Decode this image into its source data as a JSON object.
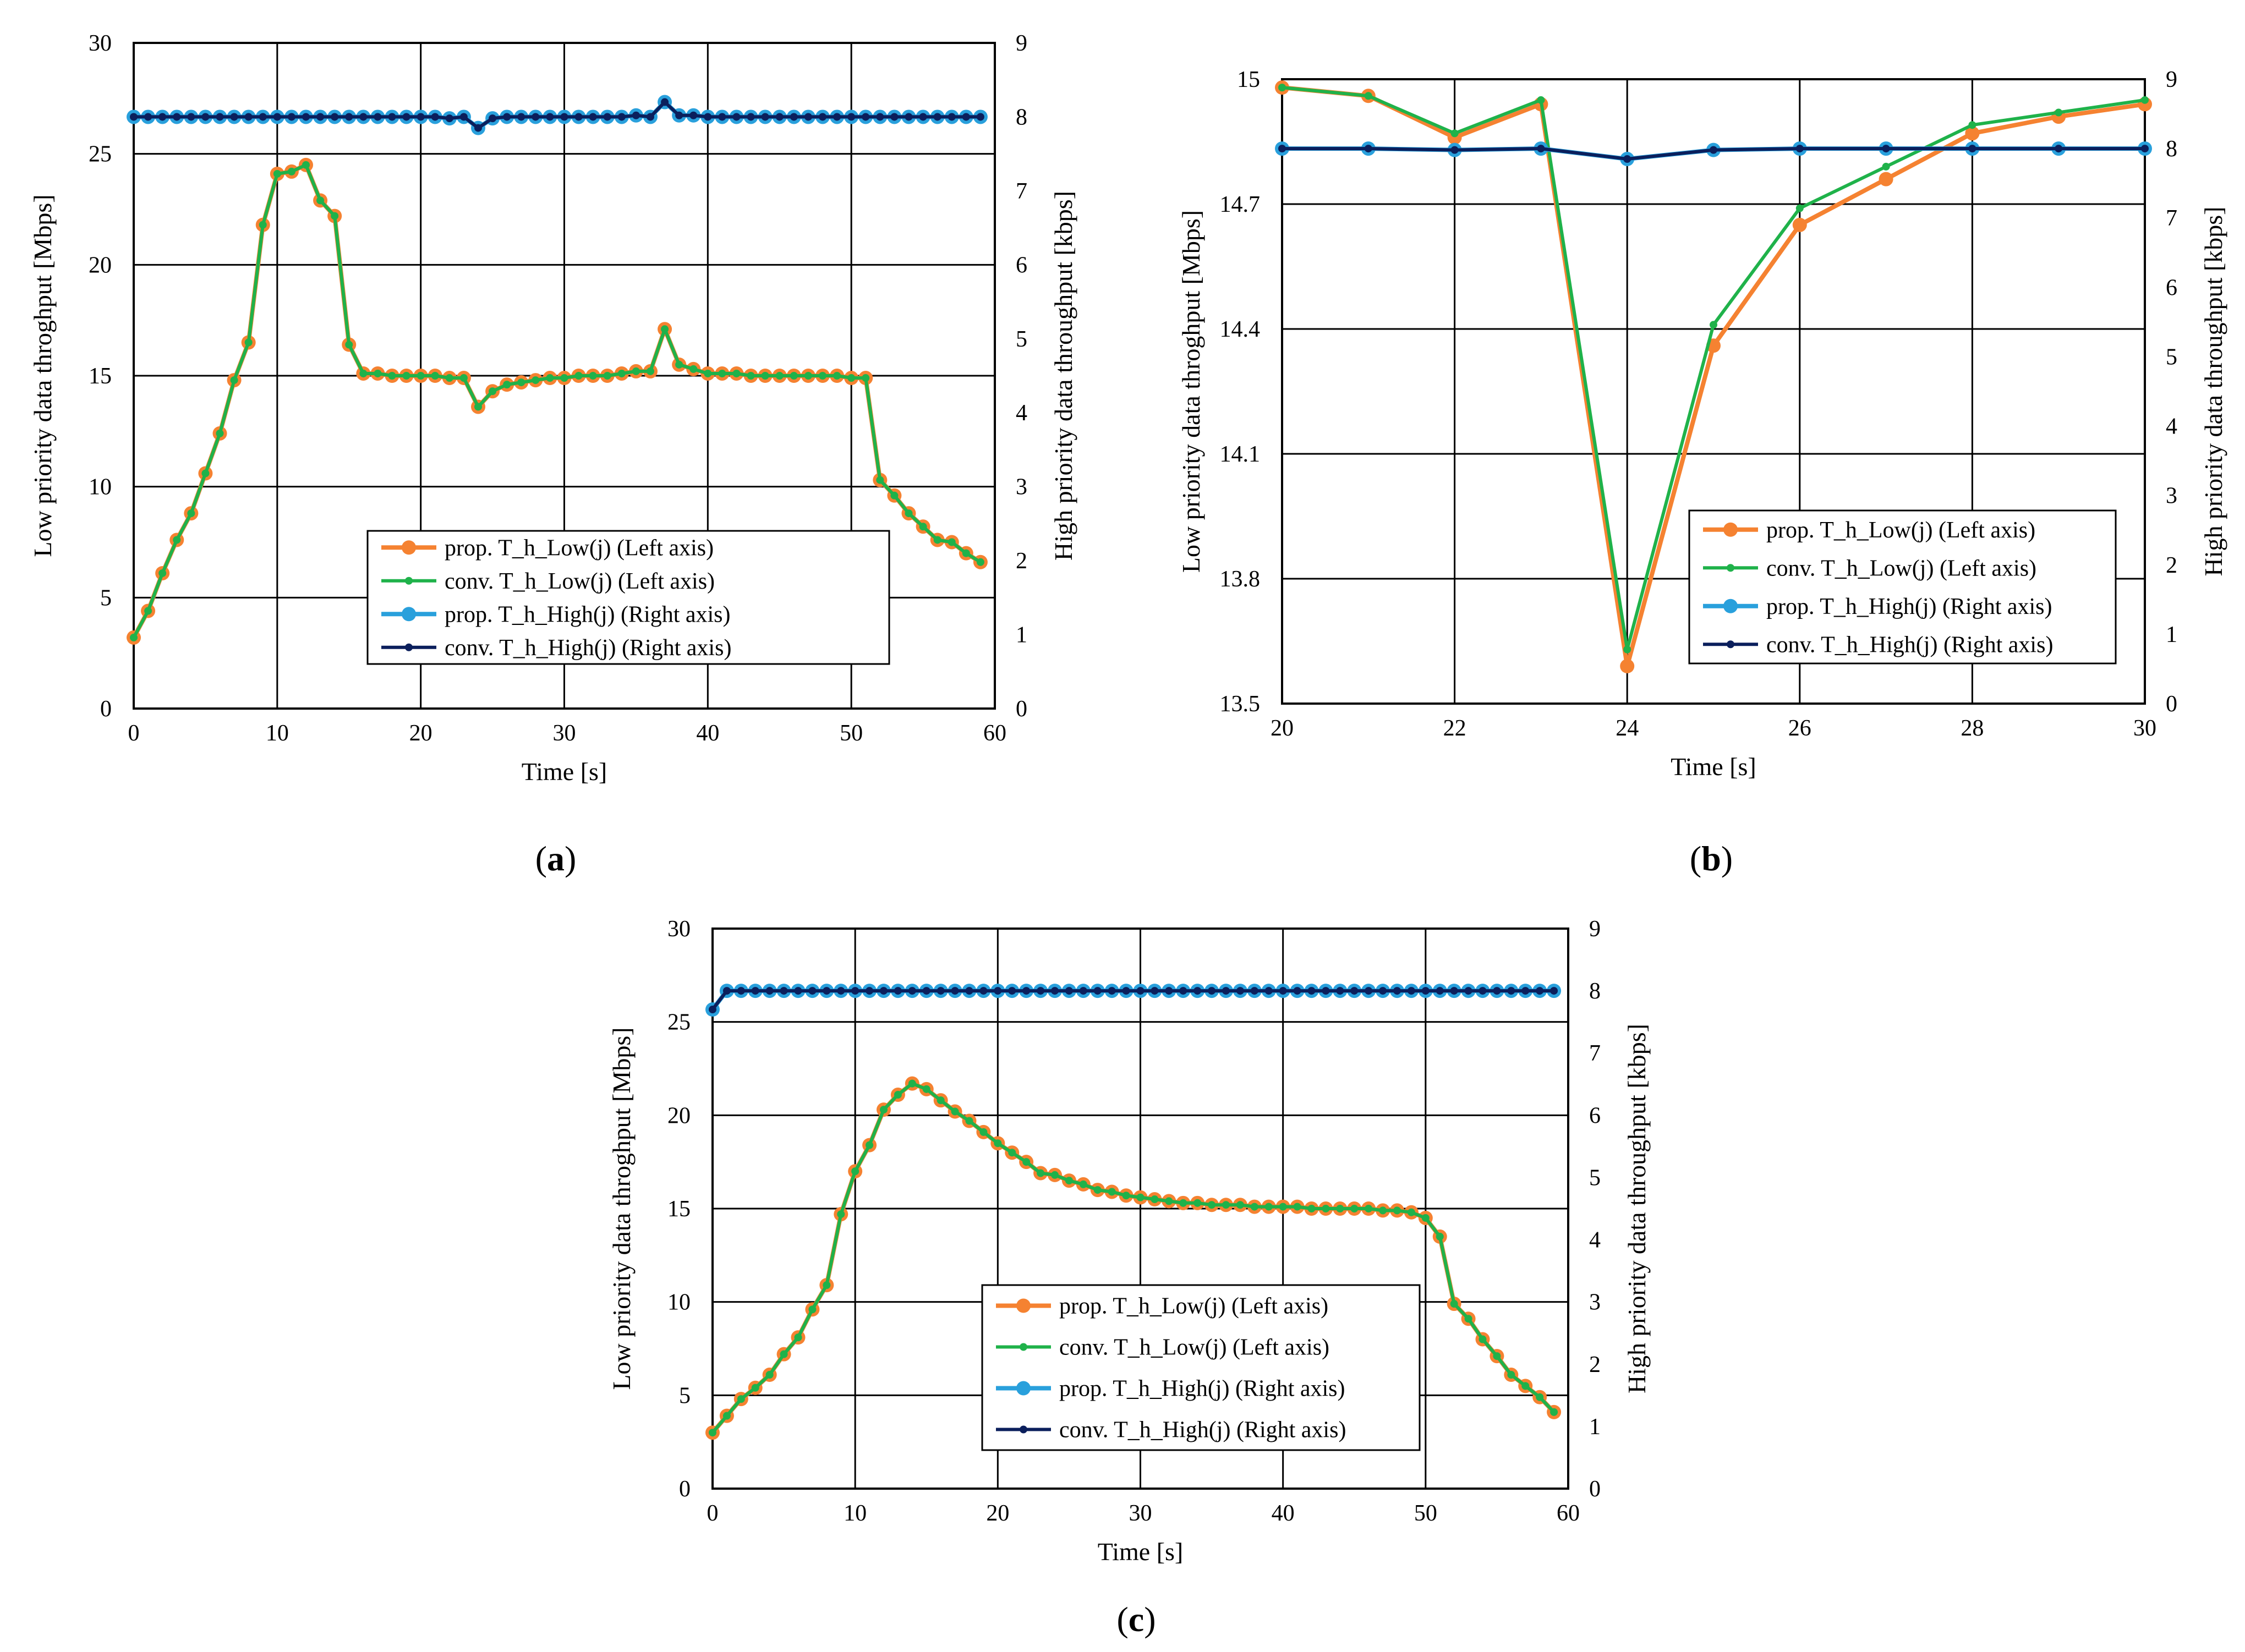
{
  "colors": {
    "prop_low": "#F58231",
    "conv_low": "#1FB24A",
    "prop_high": "#29A0DC",
    "conv_high": "#0B1F5C"
  },
  "chart_data": [
    {
      "id": "a",
      "type": "line",
      "panel_label": "(a)",
      "panel_letter": "a",
      "xlabel": "Time [s]",
      "ylabel": "Low priority data throghput [Mbps]",
      "y2label": "High priority data throughput [kbps]",
      "xlim": [
        0,
        60
      ],
      "ylim": [
        0,
        30
      ],
      "y2lim": [
        0,
        9
      ],
      "xticks": [
        0,
        10,
        20,
        30,
        40,
        50,
        60
      ],
      "yticks": [
        0,
        5,
        10,
        15,
        20,
        25,
        30
      ],
      "y2ticks": [
        0,
        1,
        2,
        3,
        4,
        5,
        6,
        7,
        8,
        9
      ],
      "legend": [
        "prop. T_h_Low(j) (Left axis)",
        "conv.  T_h_Low(j) (Left axis)",
        "prop. T_h_High(j) (Right axis)",
        "conv. T_h_High(j) (Right axis)"
      ],
      "x": [
        0,
        1,
        2,
        3,
        4,
        5,
        6,
        7,
        8,
        9,
        10,
        11,
        12,
        13,
        14,
        15,
        16,
        17,
        18,
        19,
        20,
        21,
        22,
        23,
        24,
        25,
        26,
        27,
        28,
        29,
        30,
        31,
        32,
        33,
        34,
        35,
        36,
        37,
        38,
        39,
        40,
        41,
        42,
        43,
        44,
        45,
        46,
        47,
        48,
        49,
        50,
        51,
        52,
        53,
        54,
        55,
        56,
        57,
        58,
        59
      ],
      "series": [
        {
          "name": "prop. T_h_Low(j) (Left axis)",
          "axis": "left",
          "values": [
            3.2,
            4.4,
            6.1,
            7.6,
            8.8,
            10.6,
            12.4,
            14.8,
            16.5,
            21.8,
            24.1,
            24.2,
            24.5,
            22.9,
            22.2,
            16.4,
            15.1,
            15.1,
            15.0,
            15.0,
            15.0,
            15.0,
            14.9,
            14.9,
            13.6,
            14.3,
            14.6,
            14.7,
            14.8,
            14.9,
            14.9,
            15.0,
            15.0,
            15.0,
            15.1,
            15.2,
            15.2,
            17.1,
            15.5,
            15.3,
            15.1,
            15.1,
            15.1,
            15.0,
            15.0,
            15.0,
            15.0,
            15.0,
            15.0,
            15.0,
            14.9,
            14.9,
            10.3,
            9.6,
            8.8,
            8.2,
            7.6,
            7.5,
            7.0,
            6.6
          ]
        },
        {
          "name": "conv.  T_h_Low(j) (Left axis)",
          "axis": "left",
          "values": [
            3.2,
            4.4,
            6.1,
            7.6,
            8.8,
            10.6,
            12.4,
            14.8,
            16.5,
            21.8,
            24.1,
            24.2,
            24.5,
            22.9,
            22.2,
            16.4,
            15.1,
            15.1,
            15.0,
            15.0,
            15.0,
            15.0,
            14.9,
            14.9,
            13.6,
            14.3,
            14.6,
            14.7,
            14.8,
            14.9,
            14.9,
            15.0,
            15.0,
            15.0,
            15.1,
            15.2,
            15.2,
            17.1,
            15.5,
            15.3,
            15.1,
            15.1,
            15.1,
            15.0,
            15.0,
            15.0,
            15.0,
            15.0,
            15.0,
            15.0,
            14.9,
            14.9,
            10.3,
            9.6,
            8.8,
            8.2,
            7.6,
            7.5,
            7.0,
            6.6
          ]
        },
        {
          "name": "prop. T_h_High(j) (Right axis)",
          "axis": "right",
          "values": [
            8.0,
            8.0,
            8.0,
            8.0,
            8.0,
            8.0,
            8.0,
            8.0,
            8.0,
            8.0,
            8.0,
            8.0,
            8.0,
            8.0,
            8.0,
            8.0,
            8.0,
            8.0,
            8.0,
            8.0,
            8.0,
            8.0,
            7.98,
            8.0,
            7.85,
            7.98,
            8.0,
            8.0,
            8.0,
            8.0,
            8.0,
            8.0,
            8.0,
            8.0,
            8.0,
            8.02,
            8.0,
            8.2,
            8.02,
            8.02,
            8.0,
            8.0,
            8.0,
            8.0,
            8.0,
            8.0,
            8.0,
            8.0,
            8.0,
            8.0,
            8.0,
            8.0,
            8.0,
            8.0,
            8.0,
            8.0,
            8.0,
            8.0,
            8.0,
            8.0
          ]
        },
        {
          "name": "conv. T_h_High(j) (Right axis)",
          "axis": "right",
          "values": [
            8.0,
            8.0,
            8.0,
            8.0,
            8.0,
            8.0,
            8.0,
            8.0,
            8.0,
            8.0,
            8.0,
            8.0,
            8.0,
            8.0,
            8.0,
            8.0,
            8.0,
            8.0,
            8.0,
            8.0,
            8.0,
            8.0,
            7.98,
            8.0,
            7.85,
            7.98,
            8.0,
            8.0,
            8.0,
            8.0,
            8.0,
            8.0,
            8.0,
            8.0,
            8.0,
            8.02,
            8.0,
            8.2,
            8.02,
            8.02,
            8.0,
            8.0,
            8.0,
            8.0,
            8.0,
            8.0,
            8.0,
            8.0,
            8.0,
            8.0,
            8.0,
            8.0,
            8.0,
            8.0,
            8.0,
            8.0,
            8.0,
            8.0,
            8.0,
            8.0
          ]
        }
      ]
    },
    {
      "id": "b",
      "type": "line",
      "panel_label": "(b)",
      "panel_letter": "b",
      "xlabel": "Time [s]",
      "ylabel": "Low priority data throghput [Mbps]",
      "y2label": "High priority data throughput [kbps]",
      "xlim": [
        20,
        30
      ],
      "ylim": [
        13.5,
        15
      ],
      "y2lim": [
        0,
        9
      ],
      "xticks": [
        20,
        22,
        24,
        26,
        28,
        30
      ],
      "yticks": [
        13.5,
        13.8,
        14.1,
        14.4,
        14.7,
        15
      ],
      "yticks_text": [
        "13.5",
        "13.8",
        "14.1",
        "14.4",
        "14.7",
        "15"
      ],
      "y2ticks": [
        0,
        1,
        2,
        3,
        4,
        5,
        6,
        7,
        8,
        9
      ],
      "legend": [
        "prop. T_h_Low(j) (Left axis)",
        "conv.  T_h_Low(j) (Left axis)",
        "prop. T_h_High(j) (Right axis)",
        "conv. T_h_High(j) (Right axis)"
      ],
      "x": [
        20,
        21,
        22,
        23,
        24,
        25,
        26,
        27,
        28,
        29,
        30
      ],
      "series": [
        {
          "name": "prop. T_h_Low(j) (Left axis)",
          "axis": "left",
          "values": [
            14.98,
            14.96,
            14.86,
            14.94,
            13.59,
            14.36,
            14.65,
            14.76,
            14.87,
            14.91,
            14.94
          ]
        },
        {
          "name": "conv.  T_h_Low(j) (Left axis)",
          "axis": "left",
          "values": [
            14.98,
            14.96,
            14.87,
            14.95,
            13.63,
            14.41,
            14.69,
            14.79,
            14.89,
            14.92,
            14.95
          ]
        },
        {
          "name": "prop. T_h_High(j) (Right axis)",
          "axis": "right",
          "values": [
            8.0,
            8.0,
            7.98,
            8.0,
            7.85,
            7.98,
            8.0,
            8.0,
            8.0,
            8.0,
            8.0
          ]
        },
        {
          "name": "conv. T_h_High(j) (Right axis)",
          "axis": "right",
          "values": [
            8.0,
            8.0,
            7.98,
            8.0,
            7.85,
            7.98,
            8.0,
            8.0,
            8.0,
            8.0,
            8.0
          ]
        }
      ]
    },
    {
      "id": "c",
      "type": "line",
      "panel_label": "(c)",
      "panel_letter": "c",
      "xlabel": "Time [s]",
      "ylabel": "Low priority data throghput [Mbps]",
      "y2label": "High priority data throughput [kbps]",
      "xlim": [
        0,
        60
      ],
      "ylim": [
        0,
        30
      ],
      "y2lim": [
        0,
        9
      ],
      "xticks": [
        0,
        10,
        20,
        30,
        40,
        50,
        60
      ],
      "yticks": [
        0,
        5,
        10,
        15,
        20,
        25,
        30
      ],
      "y2ticks": [
        0,
        1,
        2,
        3,
        4,
        5,
        6,
        7,
        8,
        9
      ],
      "legend": [
        "prop. T_h_Low(j) (Left axis)",
        "conv.  T_h_Low(j) (Left axis)",
        "prop. T_h_High(j) (Right axis)",
        "conv. T_h_High(j) (Right axis)"
      ],
      "x": [
        0,
        1,
        2,
        3,
        4,
        5,
        6,
        7,
        8,
        9,
        10,
        11,
        12,
        13,
        14,
        15,
        16,
        17,
        18,
        19,
        20,
        21,
        22,
        23,
        24,
        25,
        26,
        27,
        28,
        29,
        30,
        31,
        32,
        33,
        34,
        35,
        36,
        37,
        38,
        39,
        40,
        41,
        42,
        43,
        44,
        45,
        46,
        47,
        48,
        49,
        50,
        51,
        52,
        53,
        54,
        55,
        56,
        57,
        58,
        59
      ],
      "series": [
        {
          "name": "prop. T_h_Low(j) (Left axis)",
          "axis": "left",
          "values": [
            3.0,
            3.9,
            4.8,
            5.4,
            6.1,
            7.2,
            8.1,
            9.6,
            10.9,
            14.7,
            17.0,
            18.4,
            20.3,
            21.1,
            21.7,
            21.4,
            20.8,
            20.2,
            19.7,
            19.1,
            18.5,
            18.0,
            17.5,
            16.9,
            16.8,
            16.5,
            16.3,
            16.0,
            15.9,
            15.7,
            15.6,
            15.5,
            15.4,
            15.3,
            15.3,
            15.2,
            15.2,
            15.2,
            15.1,
            15.1,
            15.1,
            15.1,
            15.0,
            15.0,
            15.0,
            15.0,
            15.0,
            14.9,
            14.9,
            14.8,
            14.5,
            13.5,
            9.9,
            9.1,
            8.0,
            7.1,
            6.1,
            5.5,
            4.9,
            4.1
          ]
        },
        {
          "name": "conv.  T_h_Low(j) (Left axis)",
          "axis": "left",
          "values": [
            3.0,
            3.9,
            4.8,
            5.4,
            6.1,
            7.2,
            8.1,
            9.6,
            10.9,
            14.7,
            17.0,
            18.4,
            20.3,
            21.1,
            21.7,
            21.4,
            20.8,
            20.2,
            19.7,
            19.1,
            18.5,
            18.0,
            17.5,
            16.9,
            16.8,
            16.5,
            16.3,
            16.0,
            15.9,
            15.7,
            15.6,
            15.5,
            15.4,
            15.3,
            15.3,
            15.2,
            15.2,
            15.2,
            15.1,
            15.1,
            15.1,
            15.1,
            15.0,
            15.0,
            15.0,
            15.0,
            15.0,
            14.9,
            14.9,
            14.8,
            14.5,
            13.5,
            9.9,
            9.1,
            8.0,
            7.1,
            6.1,
            5.5,
            4.9,
            4.1
          ]
        },
        {
          "name": "prop. T_h_High(j) (Right axis)",
          "axis": "right",
          "values": [
            7.7,
            8.0,
            8.0,
            8.0,
            8.0,
            8.0,
            8.0,
            8.0,
            8.0,
            8.0,
            8.0,
            8.0,
            8.0,
            8.0,
            8.0,
            8.0,
            8.0,
            8.0,
            8.0,
            8.0,
            8.0,
            8.0,
            8.0,
            8.0,
            8.0,
            8.0,
            8.0,
            8.0,
            8.0,
            8.0,
            8.0,
            8.0,
            8.0,
            8.0,
            8.0,
            8.0,
            8.0,
            8.0,
            8.0,
            8.0,
            8.0,
            8.0,
            8.0,
            8.0,
            8.0,
            8.0,
            8.0,
            8.0,
            8.0,
            8.0,
            8.0,
            8.0,
            8.0,
            8.0,
            8.0,
            8.0,
            8.0,
            8.0,
            8.0,
            8.0
          ]
        },
        {
          "name": "conv. T_h_High(j) (Right axis)",
          "axis": "right",
          "values": [
            7.7,
            8.0,
            8.0,
            8.0,
            8.0,
            8.0,
            8.0,
            8.0,
            8.0,
            8.0,
            8.0,
            8.0,
            8.0,
            8.0,
            8.0,
            8.0,
            8.0,
            8.0,
            8.0,
            8.0,
            8.0,
            8.0,
            8.0,
            8.0,
            8.0,
            8.0,
            8.0,
            8.0,
            8.0,
            8.0,
            8.0,
            8.0,
            8.0,
            8.0,
            8.0,
            8.0,
            8.0,
            8.0,
            8.0,
            8.0,
            8.0,
            8.0,
            8.0,
            8.0,
            8.0,
            8.0,
            8.0,
            8.0,
            8.0,
            8.0,
            8.0,
            8.0,
            8.0,
            8.0,
            8.0,
            8.0,
            8.0,
            8.0,
            8.0,
            8.0
          ]
        }
      ]
    }
  ]
}
